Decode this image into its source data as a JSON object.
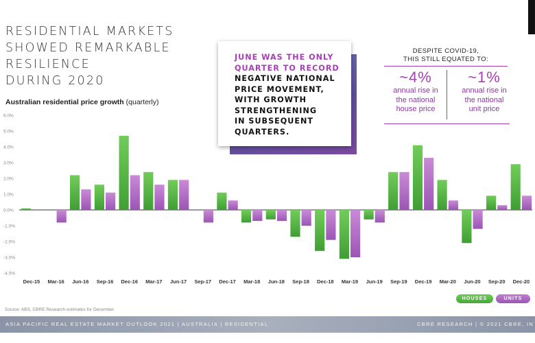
{
  "headline": {
    "lines": [
      "RESIDENTIAL MARKETS",
      "SHOWED REMARKABLE",
      "RESILIENCE",
      "DURING 2020"
    ]
  },
  "callout": {
    "lines": [
      {
        "text": "JUNE WAS THE ONLY",
        "highlight": true
      },
      {
        "text": "QUARTER TO RECORD",
        "highlight": true
      },
      {
        "text": "NEGATIVE NATIONAL",
        "highlight": false
      },
      {
        "text": "PRICE MOVEMENT,",
        "highlight": false
      },
      {
        "text": "WITH GROWTH",
        "highlight": false
      },
      {
        "text": "STRENGTHENING",
        "highlight": false
      },
      {
        "text": "IN SUBSEQUENT",
        "highlight": false
      },
      {
        "text": "QUARTERS.",
        "highlight": false
      }
    ]
  },
  "stats": {
    "heading_lines": [
      "DESPITE COVID-19,",
      "THIS STILL EQUATED TO:"
    ],
    "house": {
      "value": "~4%",
      "desc_lines": [
        "annual rise in",
        "the national",
        "house price"
      ]
    },
    "unit": {
      "value": "~1%",
      "desc_lines": [
        "annual rise in",
        "the national",
        "unit price"
      ]
    }
  },
  "chart_title": {
    "main": "Australian residential price growth",
    "note": "(quarterly)"
  },
  "source": "Source: ABS, CBRE Research estimates for December.",
  "footer": {
    "left": "ASIA PACIFIC REAL ESTATE MARKET OUTLOOK 2021  |  AUSTRALIA  |  RESIDENTIAL",
    "right": "CBRE RESEARCH  |  © 2021 CBRE, IN"
  },
  "colors": {
    "houses_top": "#72cc5a",
    "houses_bottom": "#3f9e34",
    "units_top": "#c98bd6",
    "units_bottom": "#9b55b5",
    "accent": "#a63fb5"
  },
  "chart_data": {
    "type": "bar",
    "title": "Australian residential price growth (quarterly)",
    "xlabel": "",
    "ylabel": "",
    "ylim": [
      -4.0,
      6.0
    ],
    "y_ticks": [
      6.0,
      5.0,
      4.0,
      3.0,
      2.0,
      1.0,
      0.0,
      -1.0,
      -2.0,
      -3.0,
      -4.0
    ],
    "y_tick_labels": [
      "6.0%",
      "5.0%",
      "4.0%",
      "3.0%",
      "2.0%",
      "1.0%",
      "0.0%",
      "-1.0%",
      "-2.0%",
      "-3.0%",
      "-4.0%"
    ],
    "grid": false,
    "legend_position": "bottom-right",
    "categories": [
      "Dec-15",
      "Mar-16",
      "Jun-16",
      "Sep-16",
      "Dec-16",
      "Mar-17",
      "Jun-17",
      "Sep-17",
      "Dec-17",
      "Mar-18",
      "Jun-18",
      "Sep-18",
      "Dec-18",
      "Mar-19",
      "Jun-19",
      "Sep-19",
      "Dec-19",
      "Mar-20",
      "Jun-20",
      "Sep-20",
      "Dec-20"
    ],
    "series": [
      {
        "name": "HOUSES",
        "values": [
          0.1,
          0.0,
          2.2,
          1.6,
          4.7,
          2.4,
          1.9,
          0.0,
          1.1,
          -0.8,
          -0.6,
          -1.7,
          -2.6,
          -3.1,
          -0.6,
          2.4,
          4.1,
          1.9,
          -2.1,
          0.9,
          2.9
        ]
      },
      {
        "name": "UNITS",
        "values": [
          0.0,
          -0.8,
          1.3,
          1.1,
          2.2,
          1.6,
          1.9,
          -0.8,
          0.6,
          -0.7,
          -0.7,
          -1.0,
          -1.9,
          -3.0,
          -0.8,
          2.4,
          3.3,
          0.6,
          -1.2,
          0.3,
          0.9
        ]
      }
    ]
  }
}
